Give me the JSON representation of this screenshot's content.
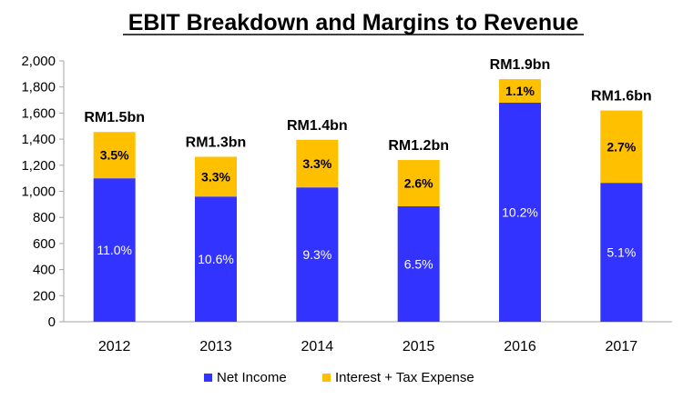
{
  "chart_data": {
    "type": "bar",
    "stacked": true,
    "title": "EBIT Breakdown and Margins to Revenue",
    "categories": [
      "2012",
      "2013",
      "2014",
      "2015",
      "2016",
      "2017"
    ],
    "series": [
      {
        "name": "Net Income",
        "color": "#3333ff",
        "values": [
          1100,
          960,
          1030,
          885,
          1680,
          1065
        ],
        "labels": [
          "11.0%",
          "10.6%",
          "9.3%",
          "6.5%",
          "10.2%",
          "5.1%"
        ]
      },
      {
        "name": "Interest + Tax Expense",
        "color": "#ffc000",
        "values": [
          355,
          305,
          365,
          355,
          180,
          555
        ],
        "labels": [
          "3.5%",
          "3.3%",
          "3.3%",
          "2.6%",
          "1.1%",
          "2.7%"
        ]
      }
    ],
    "totals": [
      "RM1.5bn",
      "RM1.3bn",
      "RM1.4bn",
      "RM1.2bn",
      "RM1.9bn",
      "RM1.6bn"
    ],
    "yticks": [
      "0",
      "200",
      "400",
      "600",
      "800",
      "1,000",
      "1,200",
      "1,400",
      "1,600",
      "1,800",
      "2,000"
    ],
    "ylim": [
      0,
      2000
    ],
    "xlabel": "",
    "ylabel": "",
    "grid": false,
    "legend_position": "bottom"
  }
}
